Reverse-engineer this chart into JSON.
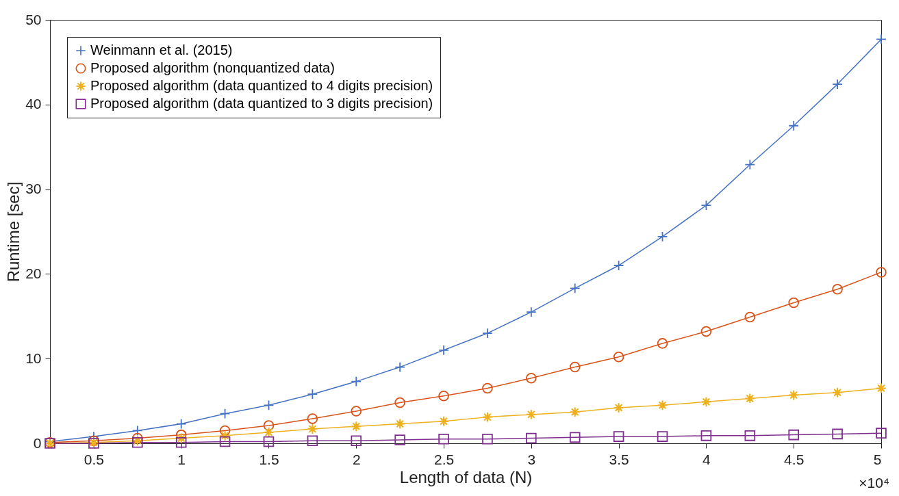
{
  "chart_data": {
    "type": "line",
    "xlabel": "Length of data (N)",
    "ylabel": "Runtime [sec]",
    "annotations": [
      "×10⁴"
    ],
    "x": [
      0.25,
      0.5,
      0.75,
      1,
      1.25,
      1.5,
      1.75,
      2,
      2.25,
      2.5,
      2.75,
      3,
      3.25,
      3.5,
      3.75,
      4,
      4.25,
      4.5,
      4.75,
      5
    ],
    "xlim": [
      0.25,
      5
    ],
    "xticks": [
      0.5,
      1,
      1.5,
      2,
      2.5,
      3,
      3.5,
      4,
      4.5,
      5
    ],
    "ylim": [
      0,
      50
    ],
    "yticks": [
      0,
      10,
      20,
      30,
      40,
      50
    ],
    "grid": false,
    "legend": "top left",
    "line_style": "solid",
    "series": [
      {
        "name": "Weinmann et al. (2015)",
        "color": "#4472c4",
        "marker": "cross",
        "values": [
          0.2,
          0.8,
          1.5,
          2.3,
          3.5,
          4.5,
          5.8,
          7.3,
          9.0,
          11.0,
          13.0,
          15.5,
          18.3,
          21.0,
          24.4,
          28.1,
          32.9,
          37.5,
          42.4,
          47.7
        ]
      },
      {
        "name": "Proposed algorithm (nonquantized data)",
        "color": "#d95319",
        "marker": "circle",
        "values": [
          0.1,
          0.3,
          0.6,
          1.0,
          1.5,
          2.1,
          2.9,
          3.8,
          4.8,
          5.6,
          6.5,
          7.7,
          9.0,
          10.2,
          11.8,
          13.2,
          14.9,
          16.6,
          18.2,
          20.2
        ]
      },
      {
        "name": "Proposed algorithm (data quantized to 4 digits precision)",
        "color": "#edb120",
        "marker": "star",
        "values": [
          0.0,
          0.1,
          0.3,
          0.6,
          0.9,
          1.3,
          1.7,
          2.0,
          2.3,
          2.6,
          3.1,
          3.4,
          3.7,
          4.2,
          4.5,
          4.9,
          5.3,
          5.7,
          6.0,
          6.5
        ]
      },
      {
        "name": "Proposed algorithm (data quantized to 3 digits precision)",
        "color": "#7e2f8e",
        "marker": "square",
        "values": [
          0.0,
          0.0,
          0.1,
          0.1,
          0.2,
          0.2,
          0.3,
          0.3,
          0.4,
          0.5,
          0.5,
          0.6,
          0.7,
          0.8,
          0.8,
          0.9,
          0.9,
          1.0,
          1.1,
          1.2
        ]
      }
    ]
  }
}
